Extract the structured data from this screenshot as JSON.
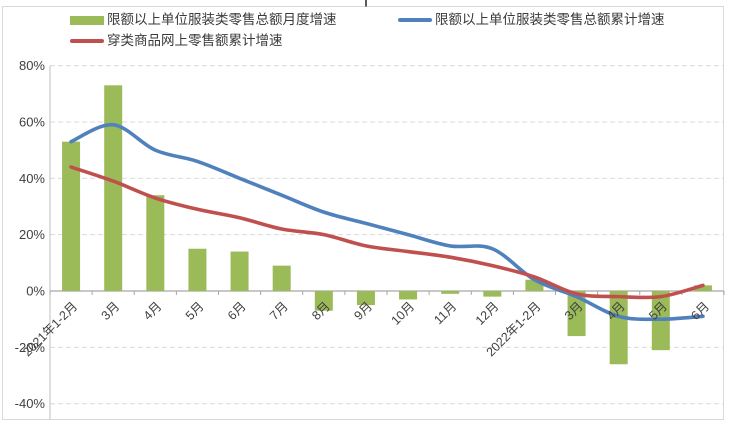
{
  "chart_data": {
    "type": "combo",
    "title": "",
    "categories": [
      "2021年1-2月",
      "3月",
      "4月",
      "5月",
      "6月",
      "7月",
      "8月",
      "9月",
      "10月",
      "11月",
      "12月",
      "2022年1-2月",
      "3月",
      "4月",
      "5月",
      "6月"
    ],
    "series": [
      {
        "name": "限额以上单位服装类零售总额月度增速",
        "type": "bar",
        "color": "#9BBB59",
        "values": [
          53,
          73,
          34,
          15,
          14,
          9,
          -7,
          -5,
          -3,
          -1,
          -2,
          4,
          -16,
          -26,
          -21,
          2
        ]
      },
      {
        "name": "限额以上单位服装类零售总额累计增速",
        "type": "line",
        "color": "#4F81BD",
        "values": [
          53,
          59,
          50,
          46,
          40,
          34,
          28,
          24,
          20,
          16,
          15,
          4,
          -2,
          -9,
          -10,
          -9
        ]
      },
      {
        "name": "穿类商品网上零售额累计增速",
        "type": "line",
        "color": "#C0504D",
        "values": [
          44,
          39,
          33,
          29,
          26,
          22,
          20,
          16,
          14,
          12,
          9,
          5,
          -1,
          -2,
          -2,
          2
        ]
      }
    ],
    "xlabel": "",
    "ylabel": "",
    "unit": "%",
    "ylim": [
      -40,
      80
    ],
    "y_tick_step": 20,
    "y_tick_labels": [
      "80%",
      "60%",
      "40%",
      "20%",
      "0%",
      "-20%",
      "-40%"
    ],
    "grid": true,
    "legend_position": "top-left",
    "colors": {
      "gridline": "#D9D9D9",
      "axis_line": "#A6A6A6",
      "plot_border": "#D9D9D9",
      "tick_label": "#404040",
      "background": "#FFFFFF"
    }
  }
}
